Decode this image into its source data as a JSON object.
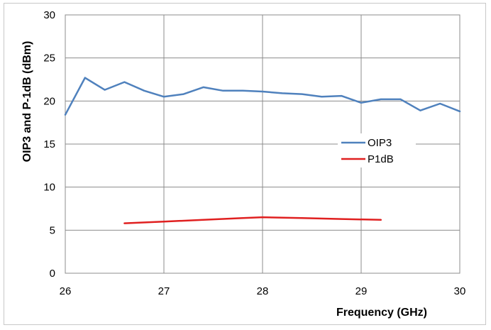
{
  "chart_data": {
    "type": "line",
    "title": "",
    "xlabel": "Frequency (GHz)",
    "ylabel": "OIP3 and P-1dB (dBm)",
    "xlim": [
      26,
      30
    ],
    "ylim": [
      0,
      30
    ],
    "xticks": [
      26,
      27,
      28,
      29,
      30
    ],
    "yticks": [
      0,
      5,
      10,
      15,
      20,
      25,
      30
    ],
    "grid": true,
    "legend_position": "right",
    "series": [
      {
        "name": "OIP3",
        "color": "#4f81bd",
        "x": [
          26.0,
          26.2,
          26.4,
          26.6,
          26.8,
          27.0,
          27.2,
          27.4,
          27.6,
          27.8,
          28.0,
          28.2,
          28.4,
          28.6,
          28.8,
          29.0,
          29.2,
          29.4,
          29.6,
          29.8,
          30.0
        ],
        "y": [
          18.4,
          22.7,
          21.3,
          22.2,
          21.2,
          20.5,
          20.8,
          21.6,
          21.2,
          21.2,
          21.1,
          20.9,
          20.8,
          20.5,
          20.6,
          19.8,
          20.2,
          20.2,
          18.9,
          19.7,
          18.8
        ]
      },
      {
        "name": "P1dB",
        "color": "#e02020",
        "x": [
          26.6,
          27.0,
          27.4,
          27.8,
          28.0,
          28.4,
          28.8,
          29.2
        ],
        "y": [
          5.8,
          6.0,
          6.2,
          6.4,
          6.5,
          6.4,
          6.3,
          6.2
        ]
      }
    ]
  }
}
